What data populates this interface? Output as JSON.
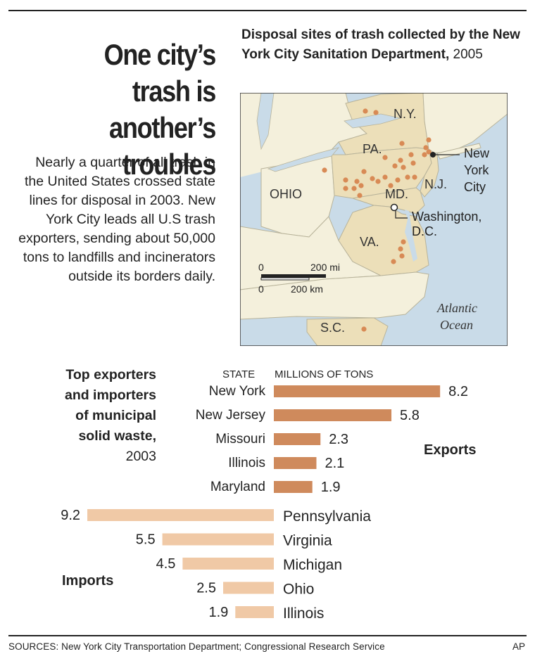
{
  "headline": "One city’s trash is another’s troubles",
  "intro": "Nearly a quarter of all trash in the United States crossed state lines for disposal in 2003. New York City leads all U.S trash exporters, sending about 50,000 tons to landfills and incinerators outside its borders daily.",
  "map": {
    "title_bold": "Disposal sites of trash collected by the New York City Sanitation Department,",
    "title_year": "2005",
    "state_labels": {
      "ny": "N.Y.",
      "pa": "PA.",
      "ohio": "OHIO",
      "md": "MD.",
      "nj": "N.J.",
      "va": "VA.",
      "sc": "S.C."
    },
    "city_label": [
      "New",
      "York",
      "City"
    ],
    "dc_label": [
      "Washington,",
      "D.C."
    ],
    "ocean_label": [
      "Atlantic",
      "Ocean"
    ],
    "scale_mi_zero": "0",
    "scale_mi": "200 mi",
    "scale_km_zero": "0",
    "scale_km": "200 km",
    "site_color": "#d88a55"
  },
  "bars": {
    "title_bold": [
      "Top exporters",
      "and importers",
      "of municipal",
      "solid waste,"
    ],
    "title_year": "2003",
    "col_state": "STATE",
    "col_value": "MILLIONS OF TONS"
  },
  "chart_data": {
    "type": "bar",
    "unit": "MILLIONS OF TONS",
    "series": [
      {
        "name": "Exports",
        "color": "#cf8a5c",
        "categories": [
          "New York",
          "New Jersey",
          "Missouri",
          "Illinois",
          "Maryland"
        ],
        "values": [
          8.2,
          5.8,
          2.3,
          2.1,
          1.9
        ]
      },
      {
        "name": "Imports",
        "color": "#f0c9a6",
        "categories": [
          "Pennsylvania",
          "Virginia",
          "Michigan",
          "Ohio",
          "Illinois"
        ],
        "values": [
          9.2,
          5.5,
          4.5,
          2.5,
          1.9
        ]
      }
    ]
  },
  "source": "SOURCES: New York City Transportation Department; Congressional Research Service",
  "credit": "AP"
}
